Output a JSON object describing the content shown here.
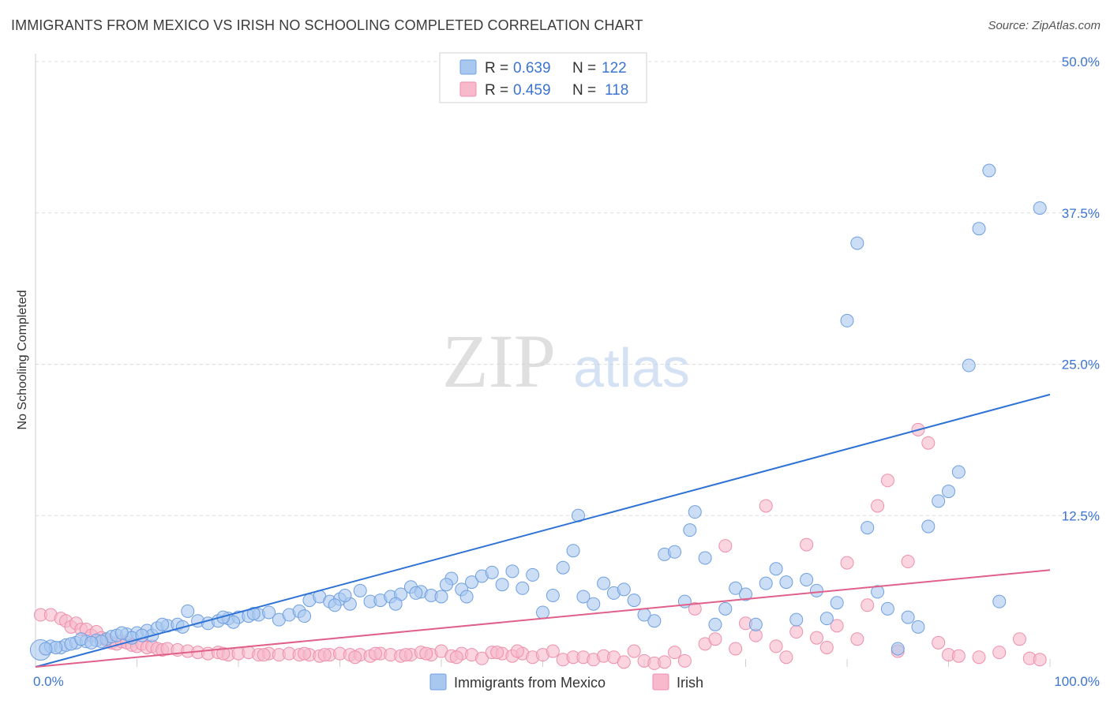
{
  "header": {
    "title": "IMMIGRANTS FROM MEXICO VS IRISH NO SCHOOLING COMPLETED CORRELATION CHART",
    "source": "Source: ZipAtlas.com"
  },
  "watermark": {
    "zip": "ZIP",
    "atlas": "atlas"
  },
  "colors": {
    "blue_fill": "#a9c8f0",
    "blue_stroke": "#6f9fe0",
    "blue_line": "#2f72d6",
    "pink_fill": "#f7b9cb",
    "pink_stroke": "#ee8fac",
    "pink_line": "#e0608a",
    "value_text": "#3b74d1",
    "grid": "#dcdcdc"
  },
  "legend": {
    "rows": [
      {
        "r_label": "R = ",
        "r_value": "0.639",
        "n_label": "N = ",
        "n_value": "122"
      },
      {
        "r_label": "R = ",
        "r_value": "0.459",
        "n_label": "N = ",
        "n_value": "118"
      }
    ]
  },
  "chart_data": {
    "type": "scatter",
    "title": "IMMIGRANTS FROM MEXICO VS IRISH NO SCHOOLING COMPLETED CORRELATION CHART",
    "xlabel": "",
    "ylabel": "No Schooling Completed",
    "xlim": [
      0,
      100
    ],
    "ylim": [
      0,
      50
    ],
    "x_tick_labels": [
      "0.0%",
      "100.0%"
    ],
    "y_ticks": [
      12.5,
      25.0,
      37.5,
      50.0
    ],
    "y_tick_labels": [
      "12.5%",
      "25.0%",
      "37.5%",
      "50.0%"
    ],
    "grid": true,
    "legend_position": "bottom",
    "series": [
      {
        "name": "Immigrants from Mexico",
        "r": 0.639,
        "n": 122,
        "trend": [
          [
            0,
            0.0
          ],
          [
            100,
            22.5
          ]
        ],
        "points": [
          [
            0.5,
            1.4
          ],
          [
            1.5,
            1.7
          ],
          [
            2.5,
            1.6
          ],
          [
            3,
            1.8
          ],
          [
            4,
            2.0
          ],
          [
            5,
            2.1
          ],
          [
            6,
            2.2
          ],
          [
            7,
            2.3
          ],
          [
            7.5,
            2.5
          ],
          [
            8,
            2.6
          ],
          [
            9,
            2.7
          ],
          [
            10,
            2.8
          ],
          [
            11,
            3.0
          ],
          [
            11.5,
            2.6
          ],
          [
            12,
            3.2
          ],
          [
            13,
            3.4
          ],
          [
            14,
            3.5
          ],
          [
            14.5,
            3.3
          ],
          [
            15,
            4.6
          ],
          [
            16,
            3.8
          ],
          [
            17,
            3.6
          ],
          [
            18,
            3.8
          ],
          [
            19,
            4.0
          ],
          [
            20,
            4.1
          ],
          [
            21,
            4.2
          ],
          [
            22,
            4.3
          ],
          [
            23,
            4.5
          ],
          [
            24,
            3.9
          ],
          [
            25,
            4.3
          ],
          [
            26,
            4.6
          ],
          [
            27,
            5.5
          ],
          [
            28,
            5.8
          ],
          [
            29,
            5.4
          ],
          [
            30,
            5.6
          ],
          [
            31,
            5.2
          ],
          [
            32,
            6.3
          ],
          [
            33,
            5.4
          ],
          [
            34,
            5.5
          ],
          [
            35,
            5.8
          ],
          [
            36,
            6.0
          ],
          [
            37,
            6.6
          ],
          [
            38,
            6.2
          ],
          [
            39,
            5.9
          ],
          [
            40,
            5.8
          ],
          [
            41,
            7.3
          ],
          [
            42,
            6.4
          ],
          [
            42.5,
            5.8
          ],
          [
            43,
            7.0
          ],
          [
            44,
            7.5
          ],
          [
            45,
            7.8
          ],
          [
            46,
            6.8
          ],
          [
            47,
            7.9
          ],
          [
            48,
            6.5
          ],
          [
            49,
            7.6
          ],
          [
            50,
            4.5
          ],
          [
            51,
            5.9
          ],
          [
            52,
            8.2
          ],
          [
            53,
            9.6
          ],
          [
            53.5,
            12.5
          ],
          [
            54,
            5.8
          ],
          [
            55,
            5.2
          ],
          [
            56,
            6.9
          ],
          [
            57,
            6.1
          ],
          [
            58,
            6.4
          ],
          [
            59,
            5.5
          ],
          [
            60,
            4.3
          ],
          [
            61,
            3.8
          ],
          [
            62,
            9.3
          ],
          [
            63,
            9.5
          ],
          [
            64,
            5.4
          ],
          [
            64.5,
            11.3
          ],
          [
            65,
            12.8
          ],
          [
            66,
            9.0
          ],
          [
            67,
            3.5
          ],
          [
            68,
            4.8
          ],
          [
            69,
            6.5
          ],
          [
            70,
            6.0
          ],
          [
            71,
            3.5
          ],
          [
            72,
            6.9
          ],
          [
            73,
            8.1
          ],
          [
            74,
            7.0
          ],
          [
            75,
            3.9
          ],
          [
            76,
            7.2
          ],
          [
            77,
            6.3
          ],
          [
            78,
            4.0
          ],
          [
            79,
            5.3
          ],
          [
            80,
            28.6
          ],
          [
            81,
            35.0
          ],
          [
            82,
            11.5
          ],
          [
            83,
            6.2
          ],
          [
            84,
            4.8
          ],
          [
            85,
            1.5
          ],
          [
            86,
            4.1
          ],
          [
            87,
            3.3
          ],
          [
            88,
            11.6
          ],
          [
            89,
            13.7
          ],
          [
            90,
            14.5
          ],
          [
            91,
            16.1
          ],
          [
            92,
            24.9
          ],
          [
            93,
            36.2
          ],
          [
            94,
            41.0
          ],
          [
            95,
            5.4
          ],
          [
            99,
            37.9
          ],
          [
            40.5,
            6.8
          ],
          [
            37.5,
            6.1
          ],
          [
            35.5,
            5.2
          ],
          [
            30.5,
            5.9
          ],
          [
            29.5,
            5.1
          ],
          [
            26.5,
            4.2
          ],
          [
            21.5,
            4.4
          ],
          [
            19.5,
            3.7
          ],
          [
            18.5,
            4.1
          ],
          [
            12.5,
            3.5
          ],
          [
            9.5,
            2.4
          ],
          [
            8.5,
            2.8
          ],
          [
            6.5,
            2.1
          ],
          [
            3.5,
            1.9
          ],
          [
            2,
            1.6
          ],
          [
            1,
            1.5
          ],
          [
            4.5,
            2.3
          ],
          [
            5.5,
            2.0
          ],
          [
            10.5,
            2.6
          ]
        ]
      },
      {
        "name": "Irish",
        "r": 0.459,
        "n": 118,
        "trend": [
          [
            0,
            0.0
          ],
          [
            100,
            8.0
          ]
        ],
        "points": [
          [
            0.5,
            4.3
          ],
          [
            1.5,
            4.3
          ],
          [
            2.5,
            4.0
          ],
          [
            3,
            3.8
          ],
          [
            3.5,
            3.3
          ],
          [
            4,
            3.6
          ],
          [
            4.5,
            3.1
          ],
          [
            5,
            3.1
          ],
          [
            5.5,
            2.6
          ],
          [
            6,
            2.9
          ],
          [
            6.5,
            2.4
          ],
          [
            7,
            2.2
          ],
          [
            7.5,
            2.0
          ],
          [
            8,
            1.9
          ],
          [
            8.5,
            2.1
          ],
          [
            9,
            2.0
          ],
          [
            9.5,
            1.8
          ],
          [
            10,
            1.7
          ],
          [
            10.5,
            1.9
          ],
          [
            11,
            1.6
          ],
          [
            11.5,
            1.7
          ],
          [
            12,
            1.5
          ],
          [
            12.5,
            1.4
          ],
          [
            13,
            1.5
          ],
          [
            14,
            1.4
          ],
          [
            15,
            1.3
          ],
          [
            16,
            1.2
          ],
          [
            17,
            1.1
          ],
          [
            18,
            1.2
          ],
          [
            19,
            1.0
          ],
          [
            20,
            1.1
          ],
          [
            21,
            1.2
          ],
          [
            22,
            1.0
          ],
          [
            23,
            1.1
          ],
          [
            24,
            1.0
          ],
          [
            25,
            1.1
          ],
          [
            26,
            1.0
          ],
          [
            27,
            1.0
          ],
          [
            28,
            0.9
          ],
          [
            29,
            1.0
          ],
          [
            30,
            1.1
          ],
          [
            31,
            1.0
          ],
          [
            32,
            1.0
          ],
          [
            33,
            0.9
          ],
          [
            34,
            1.1
          ],
          [
            35,
            1.0
          ],
          [
            36,
            0.9
          ],
          [
            37,
            1.0
          ],
          [
            38,
            1.2
          ],
          [
            39,
            1.0
          ],
          [
            40,
            1.3
          ],
          [
            41,
            0.9
          ],
          [
            42,
            1.1
          ],
          [
            43,
            1.0
          ],
          [
            44,
            0.7
          ],
          [
            45,
            1.2
          ],
          [
            46,
            1.1
          ],
          [
            47,
            0.9
          ],
          [
            48,
            1.1
          ],
          [
            49,
            0.8
          ],
          [
            50,
            1.0
          ],
          [
            51,
            1.3
          ],
          [
            52,
            0.6
          ],
          [
            53,
            0.8
          ],
          [
            54,
            0.8
          ],
          [
            55,
            0.6
          ],
          [
            56,
            0.9
          ],
          [
            57,
            0.8
          ],
          [
            58,
            0.4
          ],
          [
            59,
            1.3
          ],
          [
            60,
            0.5
          ],
          [
            61,
            0.3
          ],
          [
            62,
            0.4
          ],
          [
            63,
            1.2
          ],
          [
            64,
            0.5
          ],
          [
            65,
            4.8
          ],
          [
            66,
            1.9
          ],
          [
            67,
            2.3
          ],
          [
            68,
            10.0
          ],
          [
            69,
            1.5
          ],
          [
            70,
            3.6
          ],
          [
            71,
            2.6
          ],
          [
            72,
            13.3
          ],
          [
            73,
            1.7
          ],
          [
            74,
            0.8
          ],
          [
            75,
            2.9
          ],
          [
            76,
            10.1
          ],
          [
            77,
            2.4
          ],
          [
            78,
            1.6
          ],
          [
            79,
            3.4
          ],
          [
            80,
            8.6
          ],
          [
            81,
            2.3
          ],
          [
            82,
            5.1
          ],
          [
            83,
            13.3
          ],
          [
            84,
            15.4
          ],
          [
            85,
            1.3
          ],
          [
            86,
            8.7
          ],
          [
            87,
            19.6
          ],
          [
            88,
            18.5
          ],
          [
            89,
            2.0
          ],
          [
            90,
            1.0
          ],
          [
            91,
            0.9
          ],
          [
            93,
            0.8
          ],
          [
            95,
            1.2
          ],
          [
            97,
            2.3
          ],
          [
            98,
            0.7
          ],
          [
            99,
            0.6
          ],
          [
            47.5,
            1.3
          ],
          [
            45.5,
            1.2
          ],
          [
            41.5,
            0.8
          ],
          [
            38.5,
            1.1
          ],
          [
            36.5,
            1.0
          ],
          [
            33.5,
            1.1
          ],
          [
            31.5,
            0.8
          ],
          [
            28.5,
            1.0
          ],
          [
            26.5,
            1.1
          ],
          [
            22.5,
            1.0
          ],
          [
            18.5,
            1.1
          ]
        ]
      }
    ]
  }
}
